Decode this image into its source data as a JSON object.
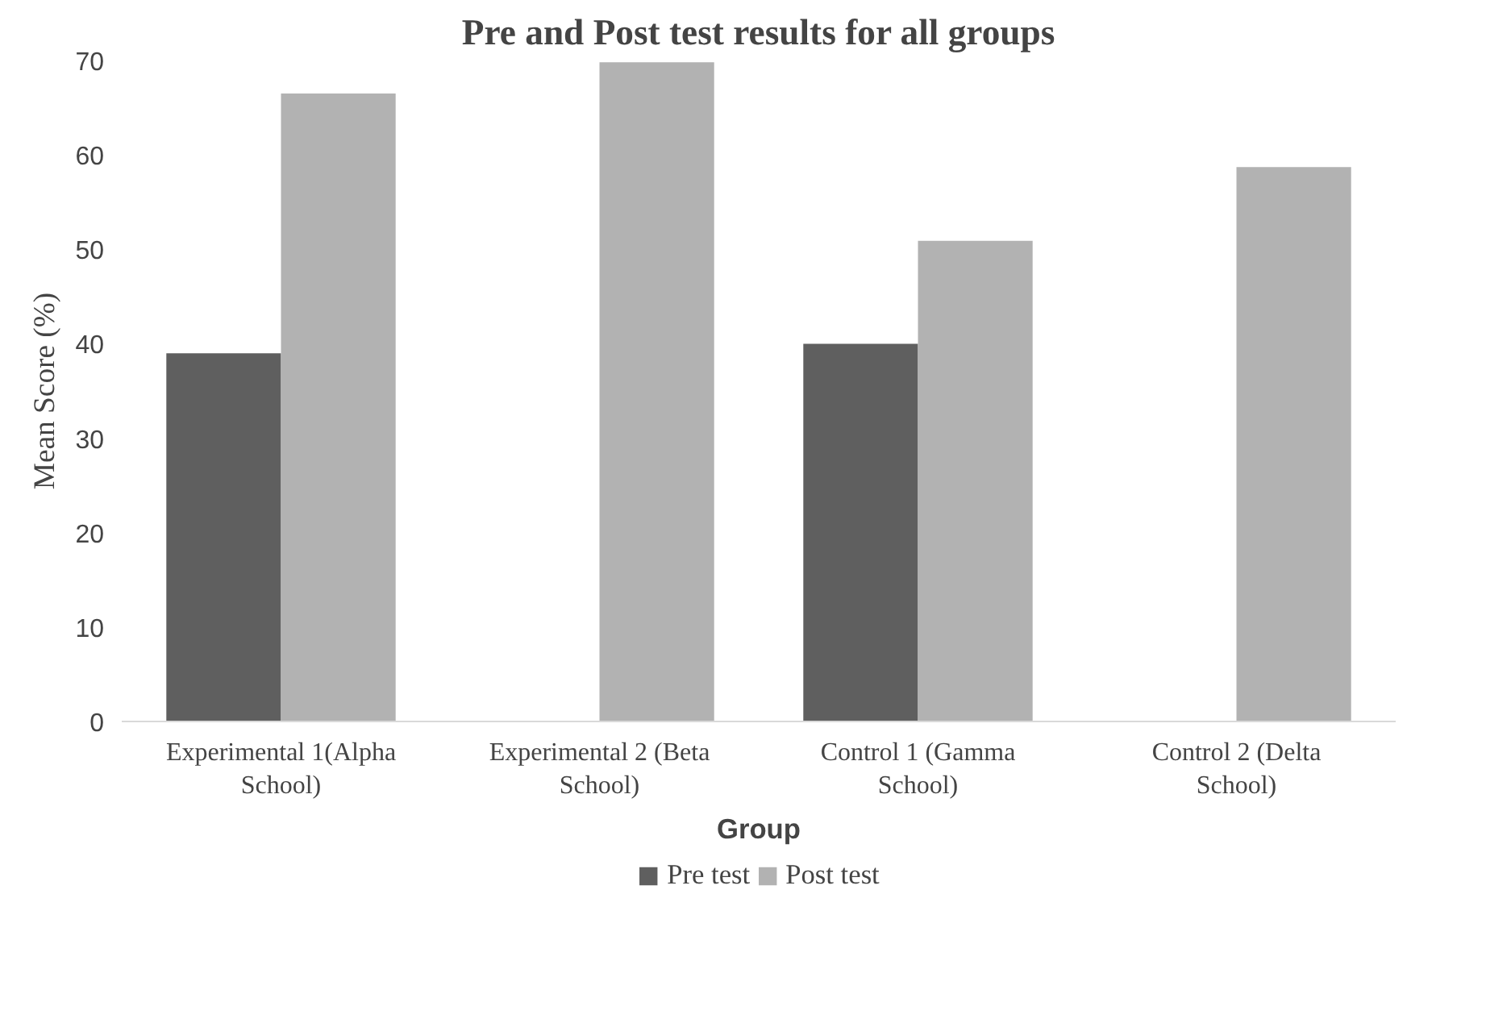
{
  "chart_data": {
    "type": "bar",
    "title": "Pre and Post test results for all groups",
    "xlabel": "Group",
    "ylabel": "Mean Score (%)",
    "categories": [
      "Experimental 1(Alpha School)",
      "Experimental 2 (Beta School)",
      "Control 1 (Gamma School)",
      "Control 2 (Delta School)"
    ],
    "series": [
      {
        "name": "Pre test",
        "color": "#5f5f5f",
        "values": [
          39,
          null,
          40,
          null
        ]
      },
      {
        "name": "Post test",
        "color": "#b2b2b2",
        "values": [
          66.5,
          69.8,
          50.9,
          58.7
        ]
      }
    ],
    "ylim": [
      0,
      70
    ],
    "yticks": [
      0,
      10,
      20,
      30,
      40,
      50,
      60,
      70
    ],
    "grid": false,
    "legend": "bottom"
  }
}
